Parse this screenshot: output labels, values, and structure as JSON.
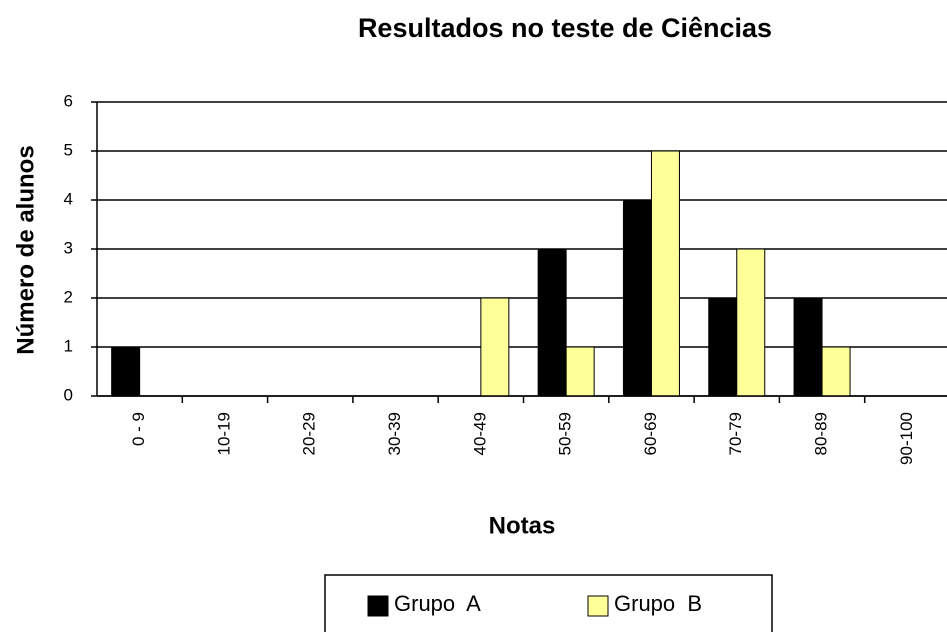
{
  "chart_data": {
    "type": "bar",
    "title": "Resultados no teste de Ciências",
    "x_label": "Notas",
    "y_label": "Número de alunos",
    "categories": [
      "0 - 9",
      "10-19",
      "20-29",
      "30-39",
      "40-49",
      "50-59",
      "60-69",
      "70-79",
      "80-89",
      "90-100"
    ],
    "series": [
      {
        "name": "Grupo  A",
        "color": "#000000",
        "values": [
          1,
          0,
          0,
          0,
          0,
          3,
          4,
          2,
          2,
          0
        ]
      },
      {
        "name": "Grupo  B",
        "color": "#ffff99",
        "values": [
          0,
          0,
          0,
          0,
          2,
          1,
          5,
          3,
          1,
          0
        ]
      }
    ],
    "ylim": [
      0,
      6
    ],
    "yticks": [
      0,
      1,
      2,
      3,
      4,
      5,
      6
    ],
    "grid": true,
    "legend": "bottom"
  }
}
